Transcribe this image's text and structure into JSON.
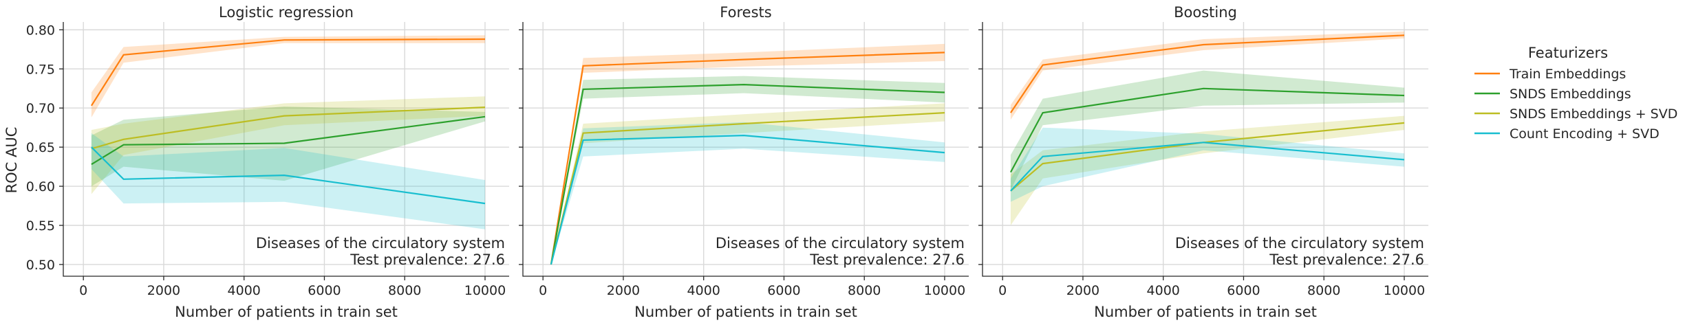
{
  "chart_data": {
    "type": "line",
    "ylabel": "ROC AUC",
    "xlabel": "Number of patients in train set",
    "ylim": [
      0.485,
      0.81
    ],
    "xlim": [
      -500,
      10600
    ],
    "yticks": [
      0.5,
      0.55,
      0.6,
      0.65,
      0.7,
      0.75,
      0.8
    ],
    "ytick_labels": [
      "0.50",
      "0.55",
      "0.60",
      "0.65",
      "0.70",
      "0.75",
      "0.80"
    ],
    "xticks": [
      0,
      2000,
      4000,
      6000,
      8000,
      10000
    ],
    "xtick_labels": [
      "0",
      "2000",
      "4000",
      "6000",
      "8000",
      "10000"
    ],
    "grid": true,
    "shared_y": true,
    "legend": {
      "title": "Featurizers",
      "placement": "right",
      "entries": [
        "Train Embeddings",
        "SNDS Embeddings",
        "SNDS Embeddings + SVD",
        "Count Encoding + SVD"
      ]
    },
    "colors": {
      "Train Embeddings": "#ff7f0e",
      "SNDS Embeddings": "#2ca02c",
      "SNDS Embeddings + SVD": "#bcbd22",
      "Count Encoding + SVD": "#17becf"
    },
    "x": [
      200,
      1000,
      5000,
      10000
    ],
    "panels": [
      {
        "title": "Logistic regression",
        "annotation": [
          "Diseases of the circulatory system",
          "Test prevalence: 27.6"
        ],
        "series": [
          {
            "name": "Train Embeddings",
            "values": [
              0.703,
              0.768,
              0.787,
              0.788
            ],
            "lower": [
              0.688,
              0.758,
              0.783,
              0.783
            ],
            "upper": [
              0.72,
              0.778,
              0.791,
              0.793
            ]
          },
          {
            "name": "SNDS Embeddings",
            "values": [
              0.628,
              0.653,
              0.655,
              0.689
            ],
            "lower": [
              0.6,
              0.625,
              0.607,
              0.683
            ],
            "upper": [
              0.665,
              0.685,
              0.702,
              0.695
            ]
          },
          {
            "name": "SNDS Embeddings + SVD",
            "values": [
              0.648,
              0.66,
              0.69,
              0.701
            ],
            "lower": [
              0.59,
              0.64,
              0.678,
              0.69
            ],
            "upper": [
              0.672,
              0.68,
              0.706,
              0.715
            ]
          },
          {
            "name": "Count Encoding + SVD",
            "values": [
              0.65,
              0.609,
              0.614,
              0.578
            ],
            "lower": [
              0.622,
              0.578,
              0.58,
              0.545
            ],
            "upper": [
              0.668,
              0.638,
              0.649,
              0.608
            ]
          }
        ]
      },
      {
        "title": "Forests",
        "annotation": [
          "Diseases of the circulatory system",
          "Test prevalence: 27.6"
        ],
        "series": [
          {
            "name": "Train Embeddings",
            "values": [
              0.5,
              0.754,
              0.762,
              0.771
            ],
            "lower": [
              0.5,
              0.745,
              0.753,
              0.76
            ],
            "upper": [
              0.5,
              0.764,
              0.771,
              0.782
            ]
          },
          {
            "name": "SNDS Embeddings",
            "values": [
              0.5,
              0.724,
              0.73,
              0.72
            ],
            "lower": [
              0.5,
              0.712,
              0.719,
              0.707
            ],
            "upper": [
              0.5,
              0.736,
              0.741,
              0.732
            ]
          },
          {
            "name": "SNDS Embeddings + SVD",
            "values": [
              0.5,
              0.668,
              0.68,
              0.694
            ],
            "lower": [
              0.5,
              0.655,
              0.668,
              0.683
            ],
            "upper": [
              0.5,
              0.68,
              0.692,
              0.706
            ]
          },
          {
            "name": "Count Encoding + SVD",
            "values": [
              0.5,
              0.659,
              0.665,
              0.643
            ],
            "lower": [
              0.5,
              0.638,
              0.648,
              0.631
            ],
            "upper": [
              0.5,
              0.674,
              0.682,
              0.656
            ]
          }
        ]
      },
      {
        "title": "Boosting",
        "annotation": [
          "Diseases of the circulatory system",
          "Test prevalence: 27.6"
        ],
        "series": [
          {
            "name": "Train Embeddings",
            "values": [
              0.694,
              0.755,
              0.781,
              0.793
            ],
            "lower": [
              0.685,
              0.748,
              0.774,
              0.789
            ],
            "upper": [
              0.704,
              0.762,
              0.788,
              0.798
            ]
          },
          {
            "name": "SNDS Embeddings",
            "values": [
              0.618,
              0.694,
              0.725,
              0.716
            ],
            "lower": [
              0.595,
              0.678,
              0.703,
              0.707
            ],
            "upper": [
              0.64,
              0.712,
              0.748,
              0.726
            ]
          },
          {
            "name": "SNDS Embeddings + SVD",
            "values": [
              0.594,
              0.629,
              0.656,
              0.681
            ],
            "lower": [
              0.55,
              0.61,
              0.642,
              0.672
            ],
            "upper": [
              0.615,
              0.646,
              0.67,
              0.69
            ]
          },
          {
            "name": "Count Encoding + SVD",
            "values": [
              0.594,
              0.638,
              0.656,
              0.634
            ],
            "lower": [
              0.58,
              0.6,
              0.646,
              0.625
            ],
            "upper": [
              0.61,
              0.675,
              0.667,
              0.642
            ]
          }
        ]
      }
    ]
  }
}
